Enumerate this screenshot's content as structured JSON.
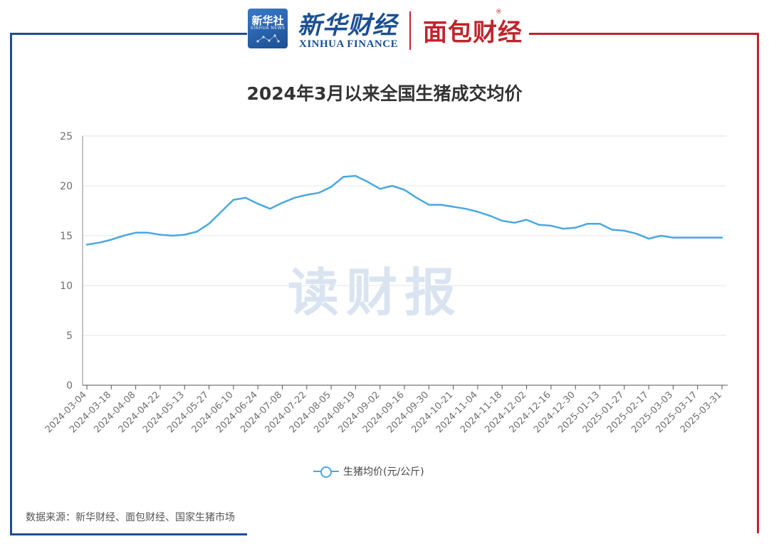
{
  "header": {
    "xinhua_badge_cn": "新华社",
    "xinhua_badge_en": "XINHUA NEWS",
    "xinhua_finance_cn": "新华财经",
    "xinhua_finance_en": "XINHUA FINANCE",
    "mianbao_logo": "面包财经",
    "registered_mark": "®"
  },
  "watermark": "读财报",
  "source": "数据来源：新华财经、面包财经、国家生猪市场",
  "colors": {
    "line": "#4aa8e0",
    "axis": "#333333",
    "grid": "#e3e6ee",
    "brand_blue": "#1f4e8c",
    "brand_red": "#c0242c"
  },
  "chart_data": {
    "type": "line",
    "title": "2024年3月以来全国生猪成交均价",
    "xlabel": "",
    "ylabel": "",
    "ylim": [
      0,
      25
    ],
    "yticks": [
      0,
      5,
      10,
      15,
      20,
      25
    ],
    "grid": true,
    "legend": "bottom-center",
    "x_tick_labels": [
      "2024-03-04",
      "2024-03-18",
      "2024-04-08",
      "2024-04-22",
      "2024-05-13",
      "2024-05-27",
      "2024-06-10",
      "2024-06-24",
      "2024-07-08",
      "2024-07-22",
      "2024-08-05",
      "2024-08-19",
      "2024-09-02",
      "2024-09-16",
      "2024-09-30",
      "2024-10-21",
      "2024-11-04",
      "2024-11-18",
      "2024-12-02",
      "2024-12-16",
      "2024-12-30",
      "2025-01-13",
      "2025-01-27",
      "2025-02-17",
      "2025-03-03",
      "2025-03-17",
      "2025-03-31"
    ],
    "series": [
      {
        "name": "生猪均价(元/公斤)",
        "values": [
          14.1,
          14.3,
          14.6,
          15.0,
          15.3,
          15.3,
          15.1,
          15.0,
          15.1,
          15.4,
          16.2,
          17.4,
          18.6,
          18.8,
          18.2,
          17.7,
          18.3,
          18.8,
          19.1,
          19.3,
          19.9,
          20.9,
          21.0,
          20.4,
          19.7,
          20.0,
          19.6,
          18.8,
          18.1,
          18.1,
          17.9,
          17.7,
          17.4,
          17.0,
          16.5,
          16.3,
          16.6,
          16.1,
          16.0,
          15.7,
          15.8,
          16.2,
          16.2,
          15.6,
          15.5,
          15.2,
          14.7,
          15.0,
          14.8,
          14.8,
          14.8,
          14.8,
          14.8
        ]
      }
    ]
  }
}
